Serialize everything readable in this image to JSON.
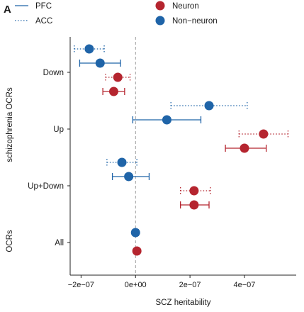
{
  "panel_label": "A",
  "chart_data": {
    "type": "scatter",
    "subtype": "point-range (estimate with error bars)",
    "xlabel": "SCZ heritability",
    "ylabel": "",
    "xlim": [
      -2.4e-07,
      5.9e-07
    ],
    "x_ticks": [
      -2e-07,
      0,
      2e-07,
      4e-07
    ],
    "x_tick_labels": [
      "−2e−07",
      "0e+00",
      "2e−07",
      "4e−07"
    ],
    "reference_line": {
      "x": 0,
      "style": "dashed"
    },
    "group_labels": [
      "schizophrenia OCRs",
      "OCRs"
    ],
    "categories": [
      "Down",
      "Up",
      "Up+Down",
      "All"
    ],
    "legend": {
      "position": "top",
      "linetype_title": "",
      "color_title": "",
      "linetypes": [
        {
          "name": "PFC",
          "style": "solid"
        },
        {
          "name": "ACC",
          "style": "dotted"
        }
      ],
      "colors": [
        {
          "name": "Neuron",
          "color": "#b5252f"
        },
        {
          "name": "Non−neuron",
          "color": "#1f64a8"
        }
      ]
    },
    "series": [
      {
        "category": "Down",
        "cell": "Non−neuron",
        "region": "ACC",
        "estimate": -1.7e-07,
        "lower": -2.25e-07,
        "upper": -1.15e-07
      },
      {
        "category": "Down",
        "cell": "Non−neuron",
        "region": "PFC",
        "estimate": -1.3e-07,
        "lower": -2.05e-07,
        "upper": -5.5e-08
      },
      {
        "category": "Down",
        "cell": "Neuron",
        "region": "ACC",
        "estimate": -6.5e-08,
        "lower": -1.1e-07,
        "upper": -2e-08
      },
      {
        "category": "Down",
        "cell": "Neuron",
        "region": "PFC",
        "estimate": -8e-08,
        "lower": -1.2e-07,
        "upper": -4e-08
      },
      {
        "category": "Up",
        "cell": "Non−neuron",
        "region": "ACC",
        "estimate": 2.7e-07,
        "lower": 1.3e-07,
        "upper": 4.1e-07
      },
      {
        "category": "Up",
        "cell": "Non−neuron",
        "region": "PFC",
        "estimate": 1.15e-07,
        "lower": -1e-08,
        "upper": 2.4e-07
      },
      {
        "category": "Up",
        "cell": "Neuron",
        "region": "ACC",
        "estimate": 4.7e-07,
        "lower": 3.8e-07,
        "upper": 5.6e-07
      },
      {
        "category": "Up",
        "cell": "Neuron",
        "region": "PFC",
        "estimate": 4e-07,
        "lower": 3.3e-07,
        "upper": 4.8e-07
      },
      {
        "category": "Up+Down",
        "cell": "Non−neuron",
        "region": "ACC",
        "estimate": -5e-08,
        "lower": -1.05e-07,
        "upper": 5e-09
      },
      {
        "category": "Up+Down",
        "cell": "Non−neuron",
        "region": "PFC",
        "estimate": -2.5e-08,
        "lower": -8.5e-08,
        "upper": 5e-08
      },
      {
        "category": "Up+Down",
        "cell": "Neuron",
        "region": "ACC",
        "estimate": 2.15e-07,
        "lower": 1.65e-07,
        "upper": 2.75e-07
      },
      {
        "category": "Up+Down",
        "cell": "Neuron",
        "region": "PFC",
        "estimate": 2.15e-07,
        "lower": 1.65e-07,
        "upper": 2.7e-07
      },
      {
        "category": "All",
        "cell": "Non−neuron",
        "region": "PFC",
        "estimate": 0.0,
        "lower": -1e-08,
        "upper": 1e-08
      },
      {
        "category": "All",
        "cell": "Neuron",
        "region": "PFC",
        "estimate": 5e-09,
        "lower": -3e-09,
        "upper": 1.2e-08
      }
    ]
  }
}
